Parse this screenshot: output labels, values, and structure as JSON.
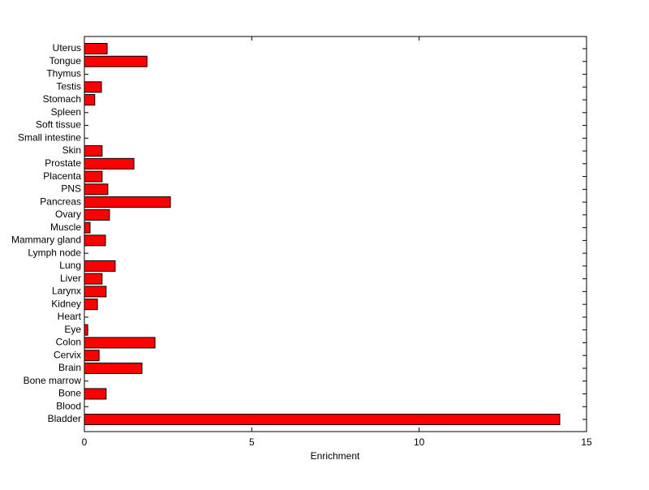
{
  "chart_data": {
    "type": "barh",
    "xlabel": "Enrichment",
    "categories": [
      "Bladder",
      "Blood",
      "Bone",
      "Bone marrow",
      "Brain",
      "Cervix",
      "Colon",
      "Eye",
      "Heart",
      "Kidney",
      "Larynx",
      "Liver",
      "Lung",
      "Lymph node",
      "Mammary gland",
      "Muscle",
      "Ovary",
      "Pancreas",
      "PNS",
      "Placenta",
      "Prostate",
      "Skin",
      "Small intestine",
      "Soft tissue",
      "Spleen",
      "Stomach",
      "Testis",
      "Thymus",
      "Tongue",
      "Uterus"
    ],
    "values": [
      14.2,
      0,
      0.65,
      0,
      1.72,
      0.44,
      2.11,
      0.1,
      0,
      0.39,
      0.65,
      0.53,
      0.92,
      0,
      0.63,
      0.17,
      0.75,
      2.57,
      0.7,
      0.53,
      1.48,
      0.53,
      0,
      0,
      0,
      0.31,
      0.51,
      0,
      1.87,
      0.68
    ],
    "color": "#ff0000",
    "xlim": [
      0,
      15
    ],
    "xticks": [
      0,
      5,
      10,
      15
    ]
  }
}
